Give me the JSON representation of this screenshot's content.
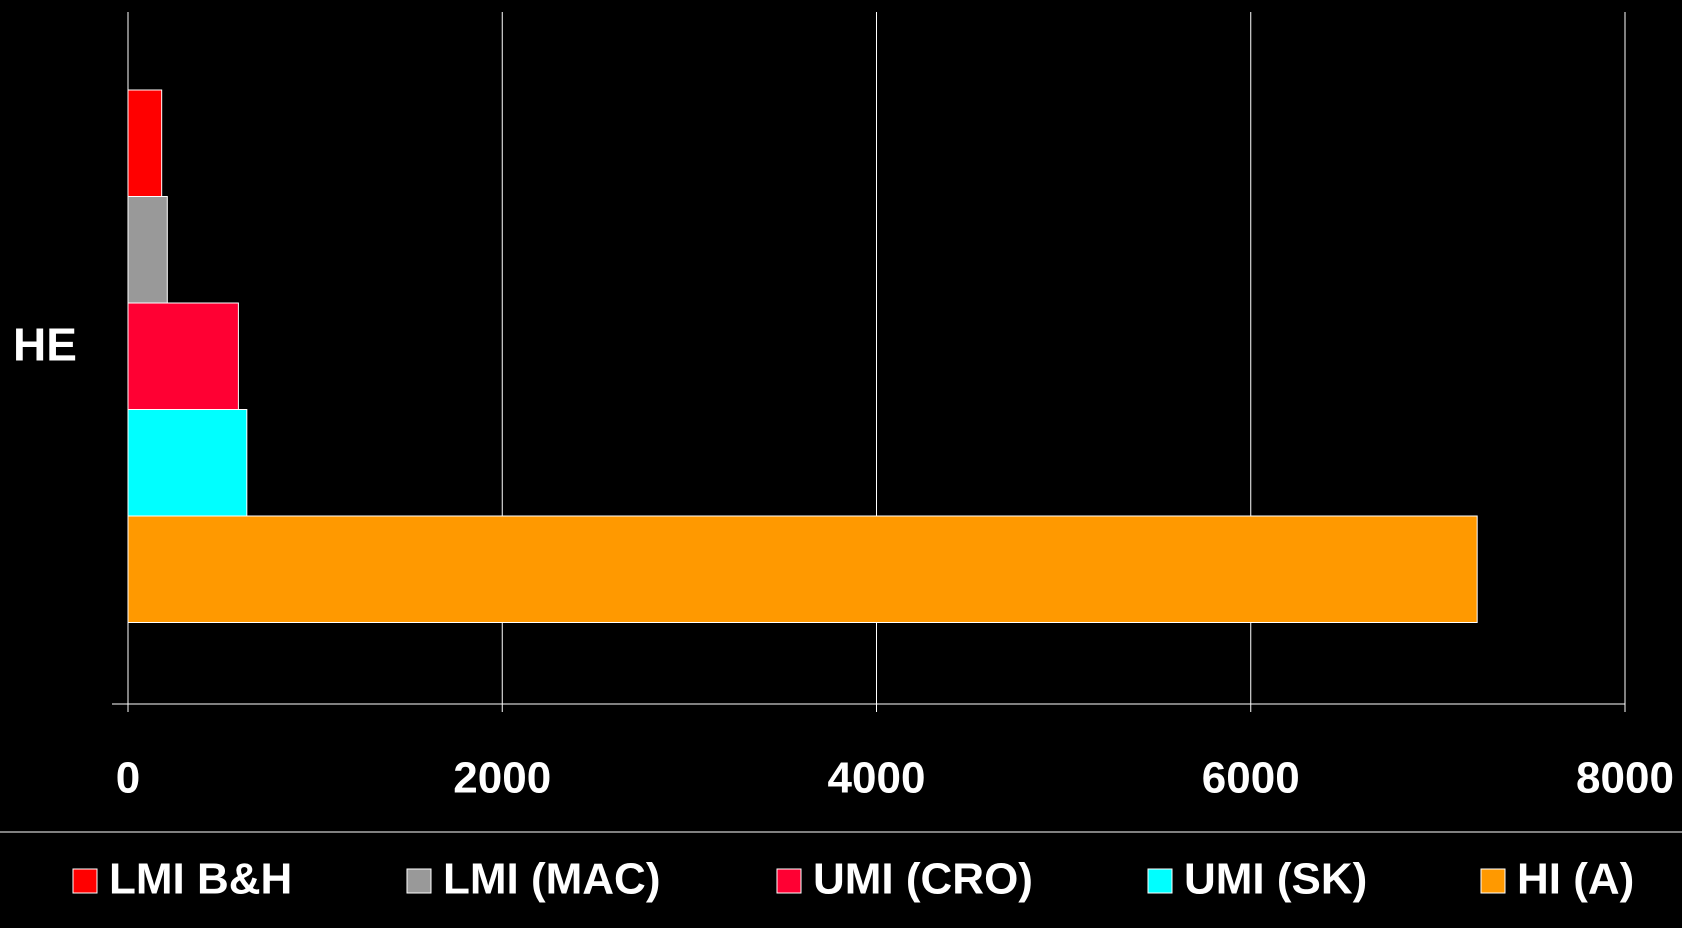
{
  "chart_data": {
    "type": "hbar",
    "categories": [
      "HE"
    ],
    "series": [
      {
        "name": "LMI B&H",
        "color": "#ff0000",
        "values": [
          180
        ]
      },
      {
        "name": "LMI (MAC)",
        "color": "#999999",
        "values": [
          210
        ]
      },
      {
        "name": "UMI (CRO)",
        "color": "#ff0033",
        "values": [
          590
        ]
      },
      {
        "name": "UMI (SK)",
        "color": "#00ffff",
        "values": [
          635
        ]
      },
      {
        "name": "HI (A)",
        "color": "#ff9900",
        "values": [
          7210
        ]
      }
    ],
    "xlim": [
      0,
      8000
    ],
    "xticks": [
      0,
      2000,
      4000,
      6000,
      8000
    ],
    "grid": true,
    "legend": "bottom"
  }
}
